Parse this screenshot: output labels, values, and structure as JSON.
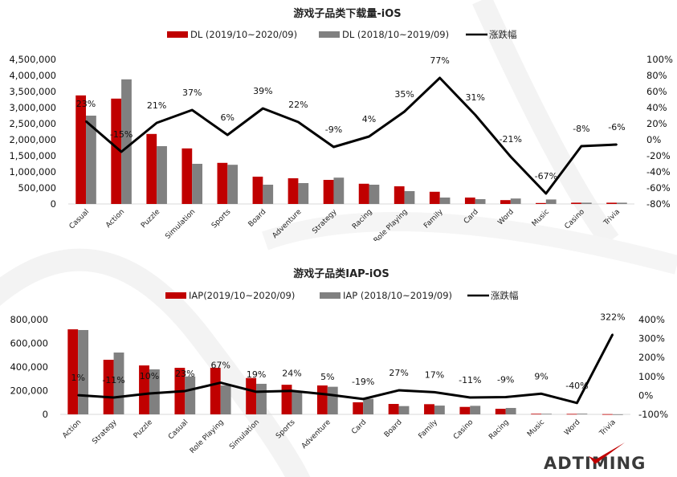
{
  "colors": {
    "current": "#C00000",
    "previous": "#808080",
    "change": "#000000"
  },
  "logo": {
    "text": "ADTIMING"
  },
  "chart_data": [
    {
      "type": "bar",
      "title": "游戏子品类下载量-iOS",
      "legend": [
        "DL (2019/10~2020/09)",
        "DL (2018/10~2019/09)",
        "涨跌幅"
      ],
      "legend_position": "top",
      "categories": [
        "Casual",
        "Action",
        "Puzzle",
        "Simulation",
        "Sports",
        "Board",
        "Adventure",
        "Strategy",
        "Racing",
        "Role Playing",
        "Family",
        "Card",
        "Word",
        "Music",
        "Casino",
        "Trivia"
      ],
      "series": [
        {
          "name": "DL (2019/10~2020/09)",
          "type": "bar",
          "values": [
            3380000,
            3280000,
            2180000,
            1730000,
            1280000,
            850000,
            800000,
            750000,
            630000,
            550000,
            380000,
            200000,
            120000,
            30000,
            40000,
            40000
          ]
        },
        {
          "name": "DL (2018/10~2019/09)",
          "type": "bar",
          "values": [
            2750000,
            3880000,
            1800000,
            1250000,
            1220000,
            600000,
            650000,
            820000,
            600000,
            400000,
            200000,
            150000,
            170000,
            140000,
            40000,
            40000
          ]
        },
        {
          "name": "涨跌幅",
          "type": "line",
          "axis": "right",
          "values": [
            23,
            -15,
            21,
            37,
            6,
            39,
            22,
            -9,
            4,
            35,
            77,
            31,
            -21,
            -67,
            -8,
            -6
          ],
          "labels": [
            "23%",
            "-15%",
            "21%",
            "37%",
            "6%",
            "39%",
            "22%",
            "-9%",
            "4%",
            "35%",
            "77%",
            "31%",
            "-21%",
            "-67%",
            "-8%",
            "-6%"
          ]
        }
      ],
      "ylim": [
        0,
        4500000
      ],
      "yticks": [
        "0",
        "500,000",
        "1,000,000",
        "1,500,000",
        "2,000,000",
        "2,500,000",
        "3,000,000",
        "3,500,000",
        "4,000,000",
        "4,500,000"
      ],
      "y2lim": [
        -80,
        100
      ],
      "y2ticks": [
        "-80%",
        "-60%",
        "-40%",
        "-20%",
        "0%",
        "20%",
        "40%",
        "60%",
        "80%",
        "100%"
      ],
      "grid": false
    },
    {
      "type": "bar",
      "title": "游戏子品类IAP-iOS",
      "legend": [
        "IAP(2019/10~2020/09)",
        "IAP (2018/10~2019/09)",
        "涨跌幅"
      ],
      "legend_position": "top",
      "categories": [
        "Action",
        "Strategy",
        "Puzzle",
        "Casual",
        "Role Playing",
        "Simulation",
        "Sports",
        "Adventure",
        "Card",
        "Board",
        "Family",
        "Casino",
        "Racing",
        "Music",
        "Word",
        "Trivia"
      ],
      "series": [
        {
          "name": "IAP(2019/10~2020/09)",
          "type": "bar",
          "values": [
            718000,
            461000,
            413000,
            393000,
            393000,
            307000,
            250000,
            244000,
            102000,
            88000,
            86000,
            63000,
            47000,
            5000,
            4000,
            2000
          ]
        },
        {
          "name": "IAP (2018/10~2019/09)",
          "type": "bar",
          "values": [
            712000,
            522000,
            380000,
            320000,
            244000,
            258000,
            199000,
            233000,
            131000,
            70000,
            74000,
            72000,
            54000,
            5000,
            6000,
            500
          ]
        },
        {
          "name": "涨跌幅",
          "type": "line",
          "axis": "right",
          "values": [
            1,
            -11,
            10,
            23,
            67,
            19,
            24,
            5,
            -19,
            27,
            17,
            -11,
            -9,
            9,
            -40,
            322
          ],
          "labels": [
            "1%",
            "-11%",
            "10%",
            "23%",
            "67%",
            "19%",
            "24%",
            "5%",
            "-19%",
            "27%",
            "17%",
            "-11%",
            "-9%",
            "9%",
            "-40%",
            "322%"
          ]
        }
      ],
      "ylim": [
        0,
        800000
      ],
      "yticks": [
        "0",
        "200,000",
        "400,000",
        "600,000",
        "800,000"
      ],
      "y2lim": [
        -100,
        400
      ],
      "y2ticks": [
        "-100%",
        "0%",
        "100%",
        "200%",
        "300%",
        "400%"
      ],
      "grid": false
    }
  ]
}
